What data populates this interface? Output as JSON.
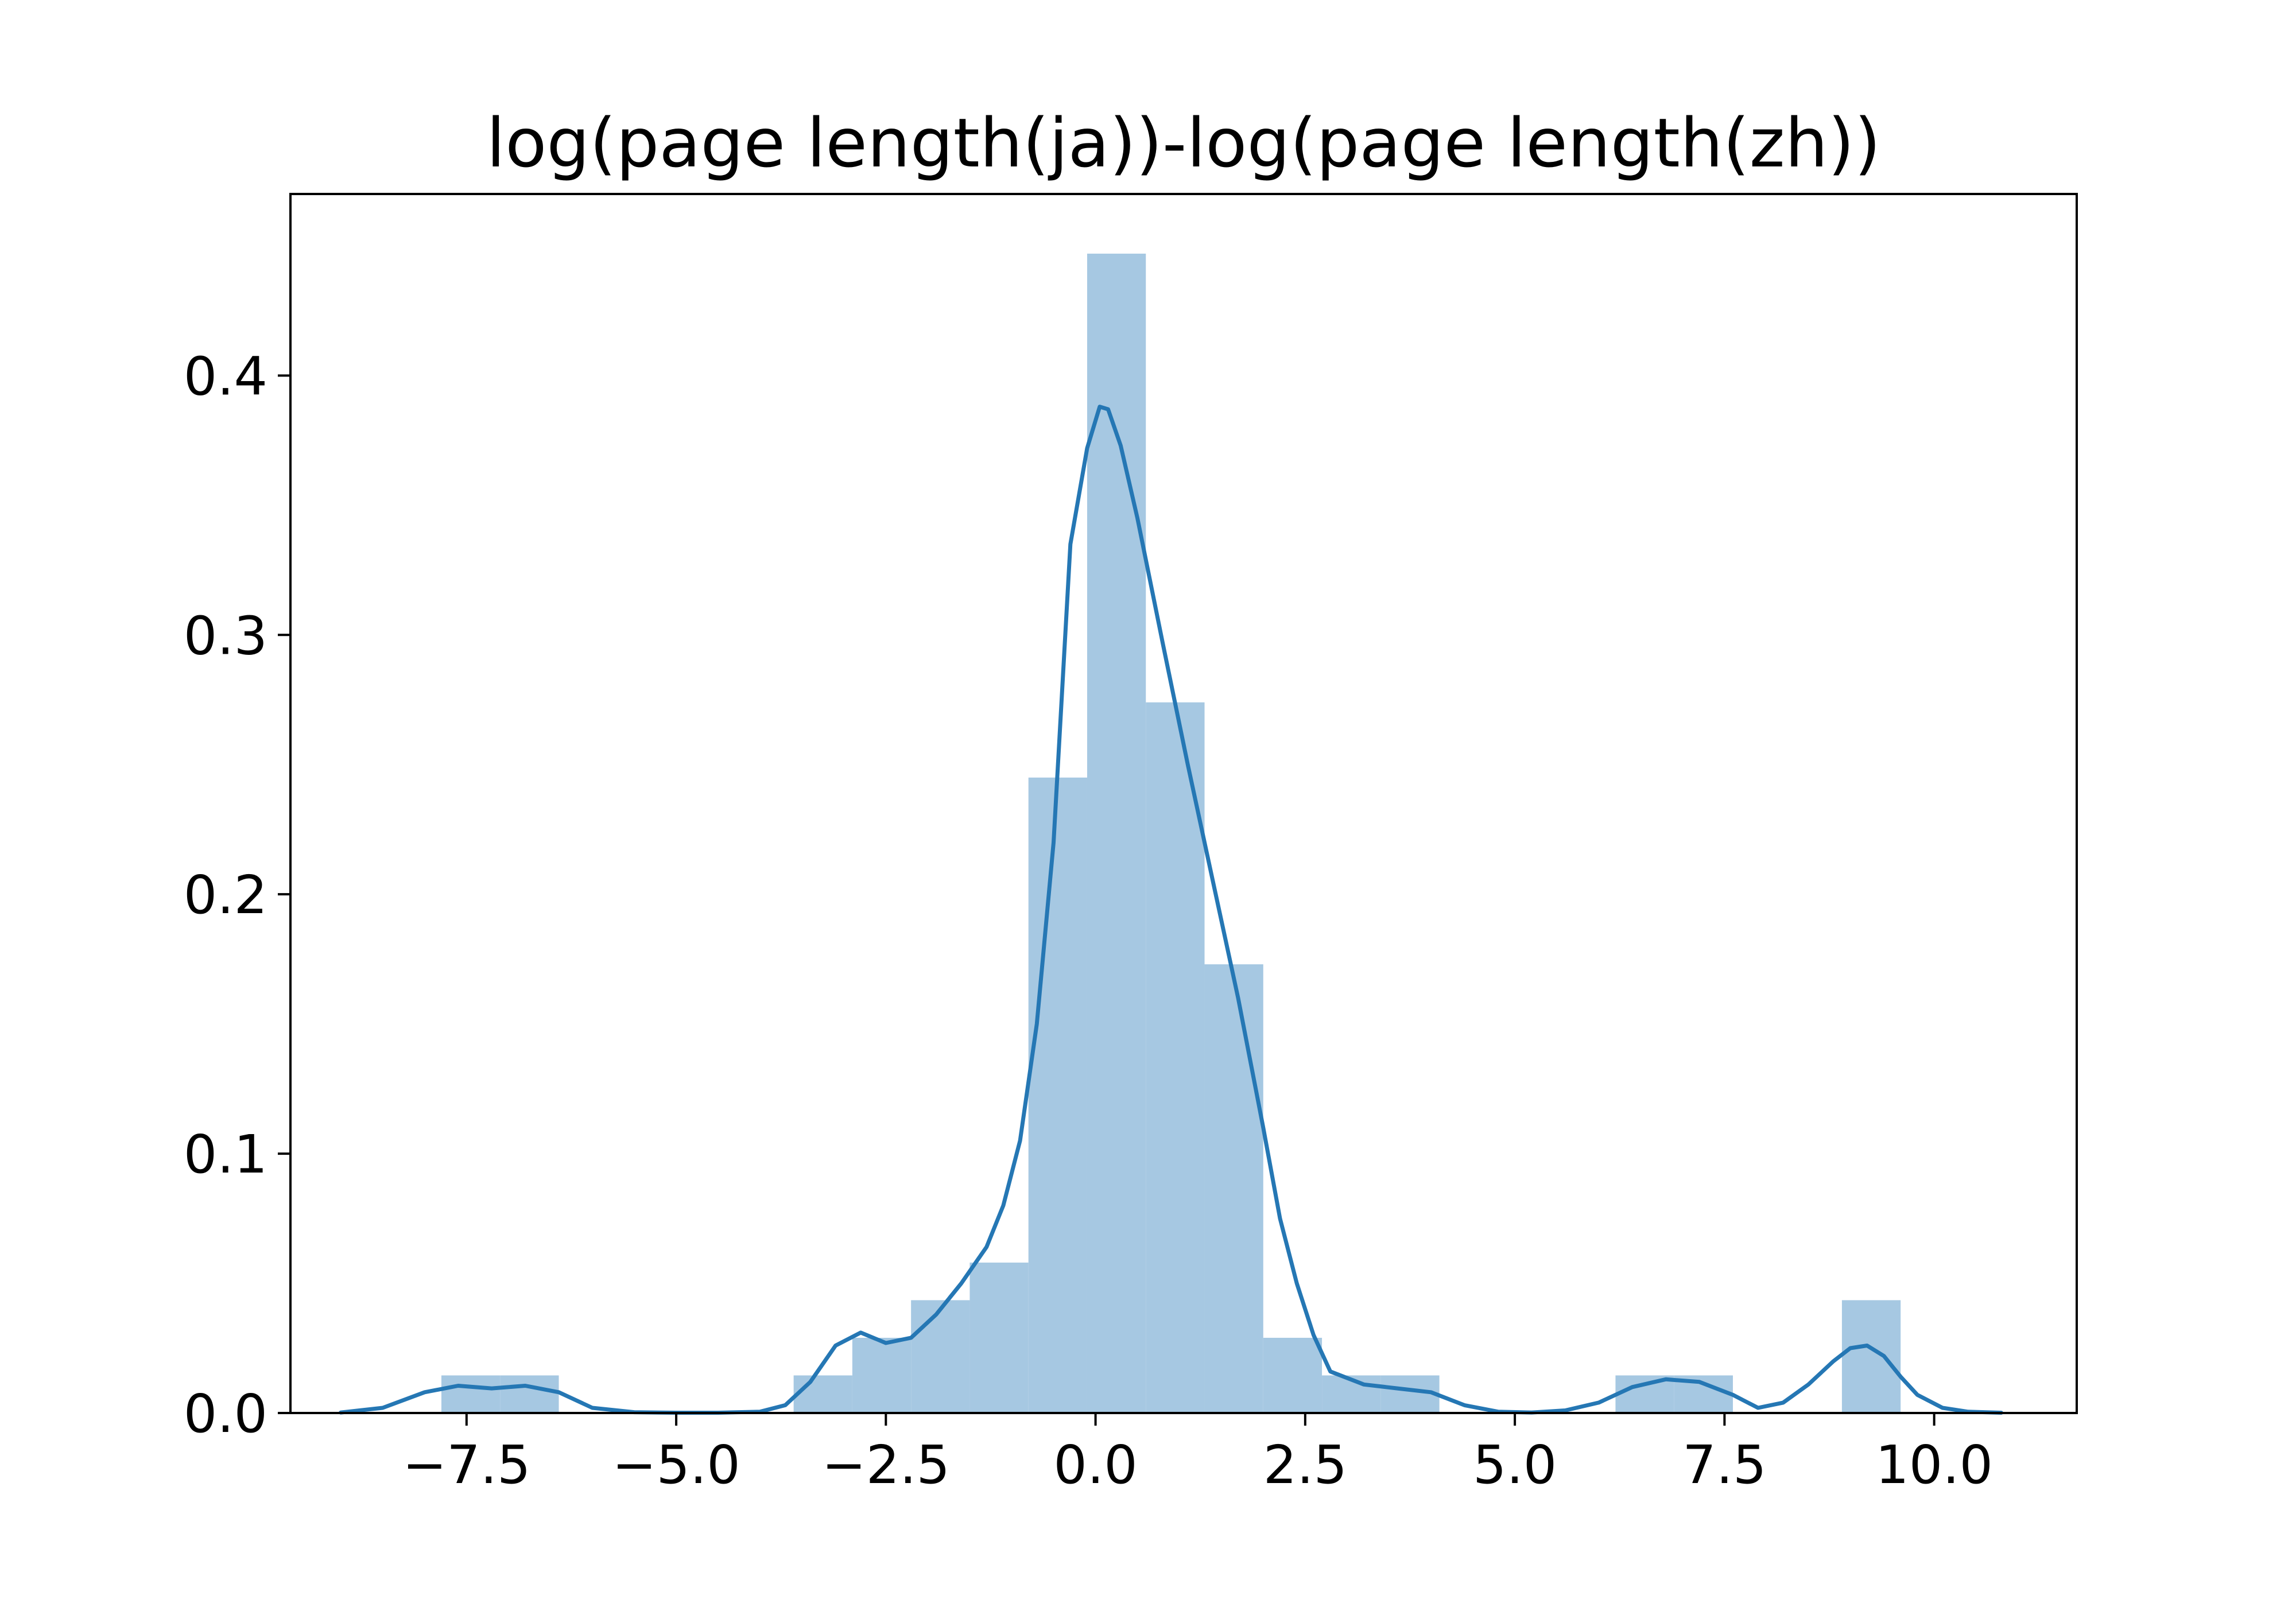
{
  "chart_data": {
    "type": "bar",
    "title": "log(page length(ja))-log(page length(zh))",
    "xlabel": "",
    "ylabel": "",
    "xlim": [
      -9.6,
      11.7
    ],
    "ylim": [
      0.0,
      0.47
    ],
    "grid": false,
    "x_ticks": [
      {
        "value": -7.5,
        "label": "−7.5"
      },
      {
        "value": -5.0,
        "label": "−5.0"
      },
      {
        "value": -2.5,
        "label": "−2.5"
      },
      {
        "value": 0.0,
        "label": "0.0"
      },
      {
        "value": 2.5,
        "label": "2.5"
      },
      {
        "value": 5.0,
        "label": "5.0"
      },
      {
        "value": 7.5,
        "label": "7.5"
      },
      {
        "value": 10.0,
        "label": "10.0"
      }
    ],
    "y_ticks": [
      {
        "value": 0.0,
        "label": "0.0"
      },
      {
        "value": 0.1,
        "label": "0.1"
      },
      {
        "value": 0.2,
        "label": "0.2"
      },
      {
        "value": 0.3,
        "label": "0.3"
      },
      {
        "value": 0.4,
        "label": "0.4"
      }
    ],
    "histogram": [
      {
        "x0": -7.8,
        "x1": -7.1,
        "density": 0.0145
      },
      {
        "x0": -7.1,
        "x1": -6.4,
        "density": 0.0145
      },
      {
        "x0": -3.6,
        "x1": -2.9,
        "density": 0.0145
      },
      {
        "x0": -2.9,
        "x1": -2.2,
        "density": 0.029
      },
      {
        "x0": -2.2,
        "x1": -1.5,
        "density": 0.0435
      },
      {
        "x0": -1.5,
        "x1": -0.8,
        "density": 0.058
      },
      {
        "x0": -0.8,
        "x1": -0.1,
        "density": 0.245
      },
      {
        "x0": -0.1,
        "x1": 0.6,
        "density": 0.447
      },
      {
        "x0": 0.6,
        "x1": 1.3,
        "density": 0.274
      },
      {
        "x0": 1.3,
        "x1": 2.0,
        "density": 0.173
      },
      {
        "x0": 2.0,
        "x1": 2.7,
        "density": 0.029
      },
      {
        "x0": 2.7,
        "x1": 3.4,
        "density": 0.0145
      },
      {
        "x0": 3.4,
        "x1": 4.1,
        "density": 0.0145
      },
      {
        "x0": 6.2,
        "x1": 6.9,
        "density": 0.0145
      },
      {
        "x0": 6.9,
        "x1": 7.6,
        "density": 0.0145
      },
      {
        "x0": 8.9,
        "x1": 9.6,
        "density": 0.0435
      }
    ],
    "series": [
      {
        "type": "kde",
        "x": [
          -9.0,
          -8.5,
          -8.0,
          -7.6,
          -7.2,
          -6.8,
          -6.4,
          -6.0,
          -5.5,
          -5.0,
          -4.5,
          -4.0,
          -3.7,
          -3.4,
          -3.1,
          -2.8,
          -2.5,
          -2.2,
          -1.9,
          -1.6,
          -1.3,
          -1.1,
          -0.9,
          -0.7,
          -0.5,
          -0.3,
          -0.1,
          0.05,
          0.15,
          0.3,
          0.5,
          0.8,
          1.1,
          1.4,
          1.7,
          2.0,
          2.2,
          2.4,
          2.6,
          2.8,
          3.2,
          3.6,
          4.0,
          4.4,
          4.8,
          5.2,
          5.6,
          6.0,
          6.4,
          6.8,
          7.2,
          7.6,
          7.9,
          8.2,
          8.5,
          8.8,
          9.0,
          9.2,
          9.4,
          9.6,
          9.8,
          10.1,
          10.4,
          10.8
        ],
        "y": [
          0.0002,
          0.002,
          0.008,
          0.0105,
          0.0095,
          0.0105,
          0.008,
          0.002,
          0.0003,
          0.0001,
          0.0001,
          0.0005,
          0.003,
          0.012,
          0.026,
          0.031,
          0.027,
          0.029,
          0.038,
          0.05,
          0.064,
          0.08,
          0.105,
          0.15,
          0.22,
          0.335,
          0.372,
          0.388,
          0.387,
          0.373,
          0.345,
          0.297,
          0.25,
          0.205,
          0.16,
          0.11,
          0.075,
          0.05,
          0.03,
          0.016,
          0.011,
          0.0095,
          0.008,
          0.003,
          0.0005,
          0.0002,
          0.001,
          0.004,
          0.01,
          0.013,
          0.012,
          0.007,
          0.002,
          0.004,
          0.011,
          0.02,
          0.025,
          0.026,
          0.022,
          0.014,
          0.007,
          0.002,
          0.0005,
          0.0001
        ]
      }
    ],
    "colors": {
      "histogram_fill": "#a6c8e2",
      "kde_line": "#2577b4"
    }
  }
}
